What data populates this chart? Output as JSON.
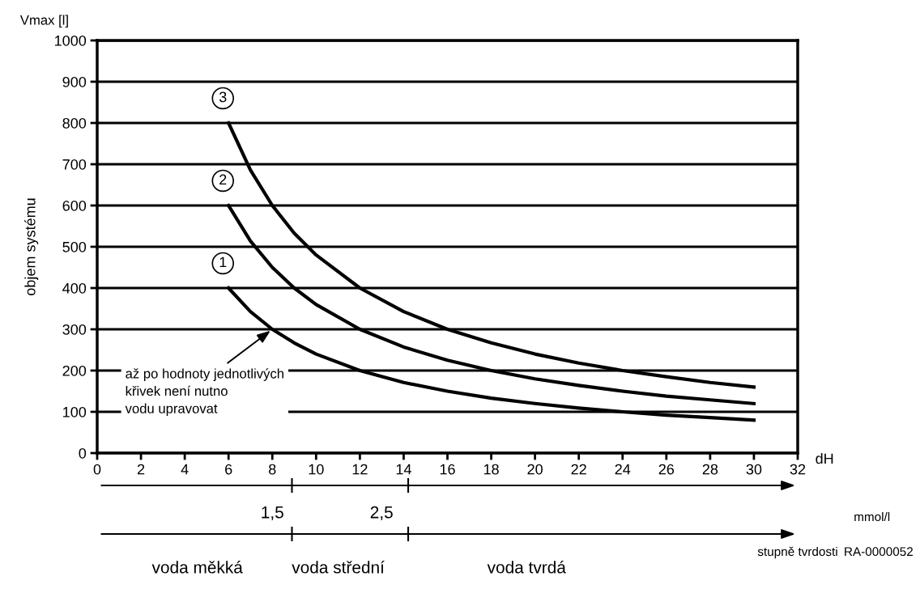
{
  "chart_data": {
    "type": "line",
    "title": "Vmax [l]",
    "ylabel": "objem systému",
    "xlabel": "dH",
    "x": [
      6,
      7,
      8,
      9,
      10,
      12,
      14,
      16,
      18,
      20,
      22,
      24,
      26,
      28,
      30
    ],
    "series": [
      {
        "name": "1",
        "color": "#000000",
        "values": [
          400,
          343,
          300,
          267,
          240,
          200,
          171,
          150,
          133,
          120,
          109,
          100,
          92,
          86,
          80
        ]
      },
      {
        "name": "2",
        "color": "#000000",
        "values": [
          600,
          514,
          450,
          400,
          360,
          300,
          257,
          225,
          200,
          180,
          164,
          150,
          138,
          129,
          120
        ]
      },
      {
        "name": "3",
        "color": "#000000",
        "values": [
          800,
          686,
          600,
          533,
          480,
          400,
          343,
          300,
          267,
          240,
          218,
          200,
          185,
          171,
          160
        ]
      }
    ],
    "xlim": [
      0,
      32
    ],
    "xticks": [
      0,
      2,
      4,
      6,
      8,
      10,
      12,
      14,
      16,
      18,
      20,
      22,
      24,
      26,
      28,
      30,
      32
    ],
    "ylim": [
      0,
      1000
    ],
    "yticks": [
      0,
      100,
      200,
      300,
      400,
      500,
      600,
      700,
      800,
      900,
      1000
    ],
    "annotations": [
      "1,5",
      "2,5",
      "mmol/l",
      "stupně tvrdosti",
      "voda měkká",
      "voda střední",
      "voda tvrdá",
      "RA-0000052",
      {
        "text": "až po hodnoty jednotlivých\nkřivek není nutno\nvodu upravovat",
        "x": 8,
        "y": 300
      }
    ],
    "grid": "y",
    "marker": "none",
    "line_style": "solid"
  }
}
